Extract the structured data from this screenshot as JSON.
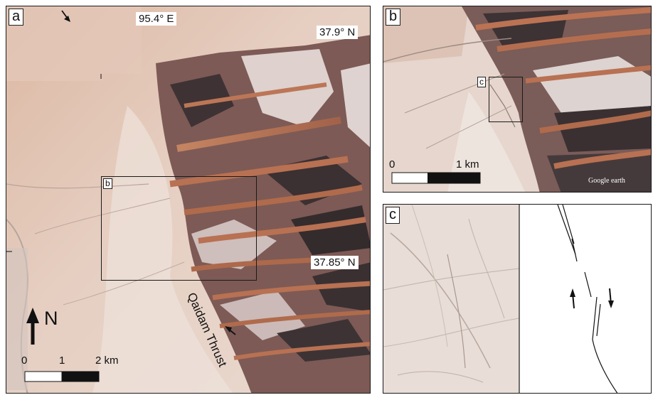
{
  "panels": {
    "a": {
      "letter": "a",
      "inset_label": "b",
      "coords": {
        "lon_top": "95.4° E",
        "lat_top": "37.9° N",
        "lat_mid": "37.85° N"
      },
      "north_label": "N",
      "fault_label": "Qaidam Thrust",
      "scale": {
        "tick0": "0",
        "tick1": "1",
        "tick2": "2 km"
      }
    },
    "b": {
      "letter": "b",
      "inset_label": "c",
      "scale": {
        "tick0": "0",
        "tick1": "1 km"
      },
      "attribution": "Google earth"
    },
    "c": {
      "letter": "c"
    }
  },
  "colors": {
    "terrain_light": "#e8d6cc",
    "terrain_pink": "#d9b3a0",
    "ridge_rust": "#b77050",
    "ridge_dark": "#3f3334",
    "snow": "#f4efee",
    "frame": "#1a1a1a"
  }
}
